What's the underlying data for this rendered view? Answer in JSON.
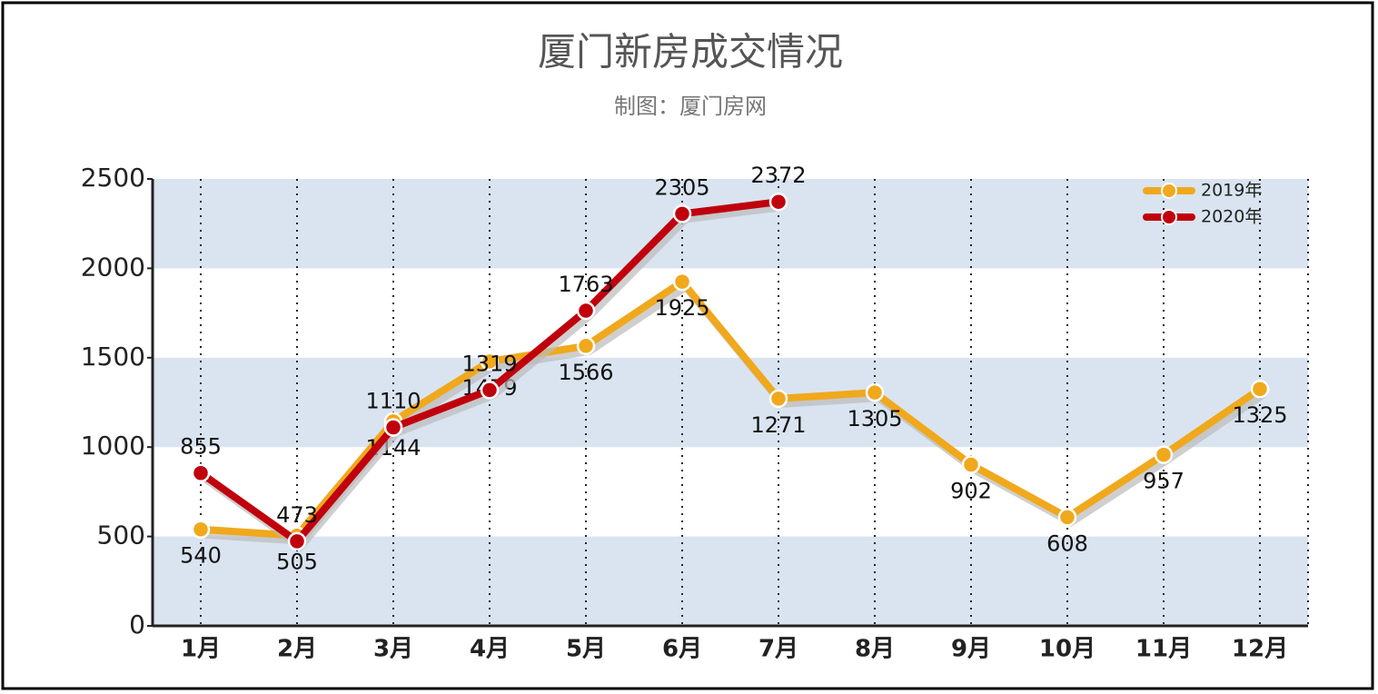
{
  "chart_data": {
    "type": "line",
    "title": "厦门新房成交情况",
    "subtitle": "制图：厦门房网",
    "categories": [
      "1月",
      "2月",
      "3月",
      "4月",
      "5月",
      "6月",
      "7月",
      "8月",
      "9月",
      "10月",
      "11月",
      "12月"
    ],
    "series": [
      {
        "name": "2019年",
        "color": "#f0a81c",
        "values": [
          540,
          505,
          1144,
          1479,
          1566,
          1925,
          1271,
          1305,
          902,
          608,
          957,
          1325
        ]
      },
      {
        "name": "2020年",
        "color": "#c0000c",
        "values": [
          855,
          473,
          1110,
          1319,
          1763,
          2305,
          2372,
          null,
          null,
          null,
          null,
          null
        ]
      }
    ],
    "ylim": [
      0,
      2500
    ],
    "yticks": [
      0,
      500,
      1000,
      1500,
      2000,
      2500
    ],
    "grid": true,
    "legend": "top-right"
  }
}
